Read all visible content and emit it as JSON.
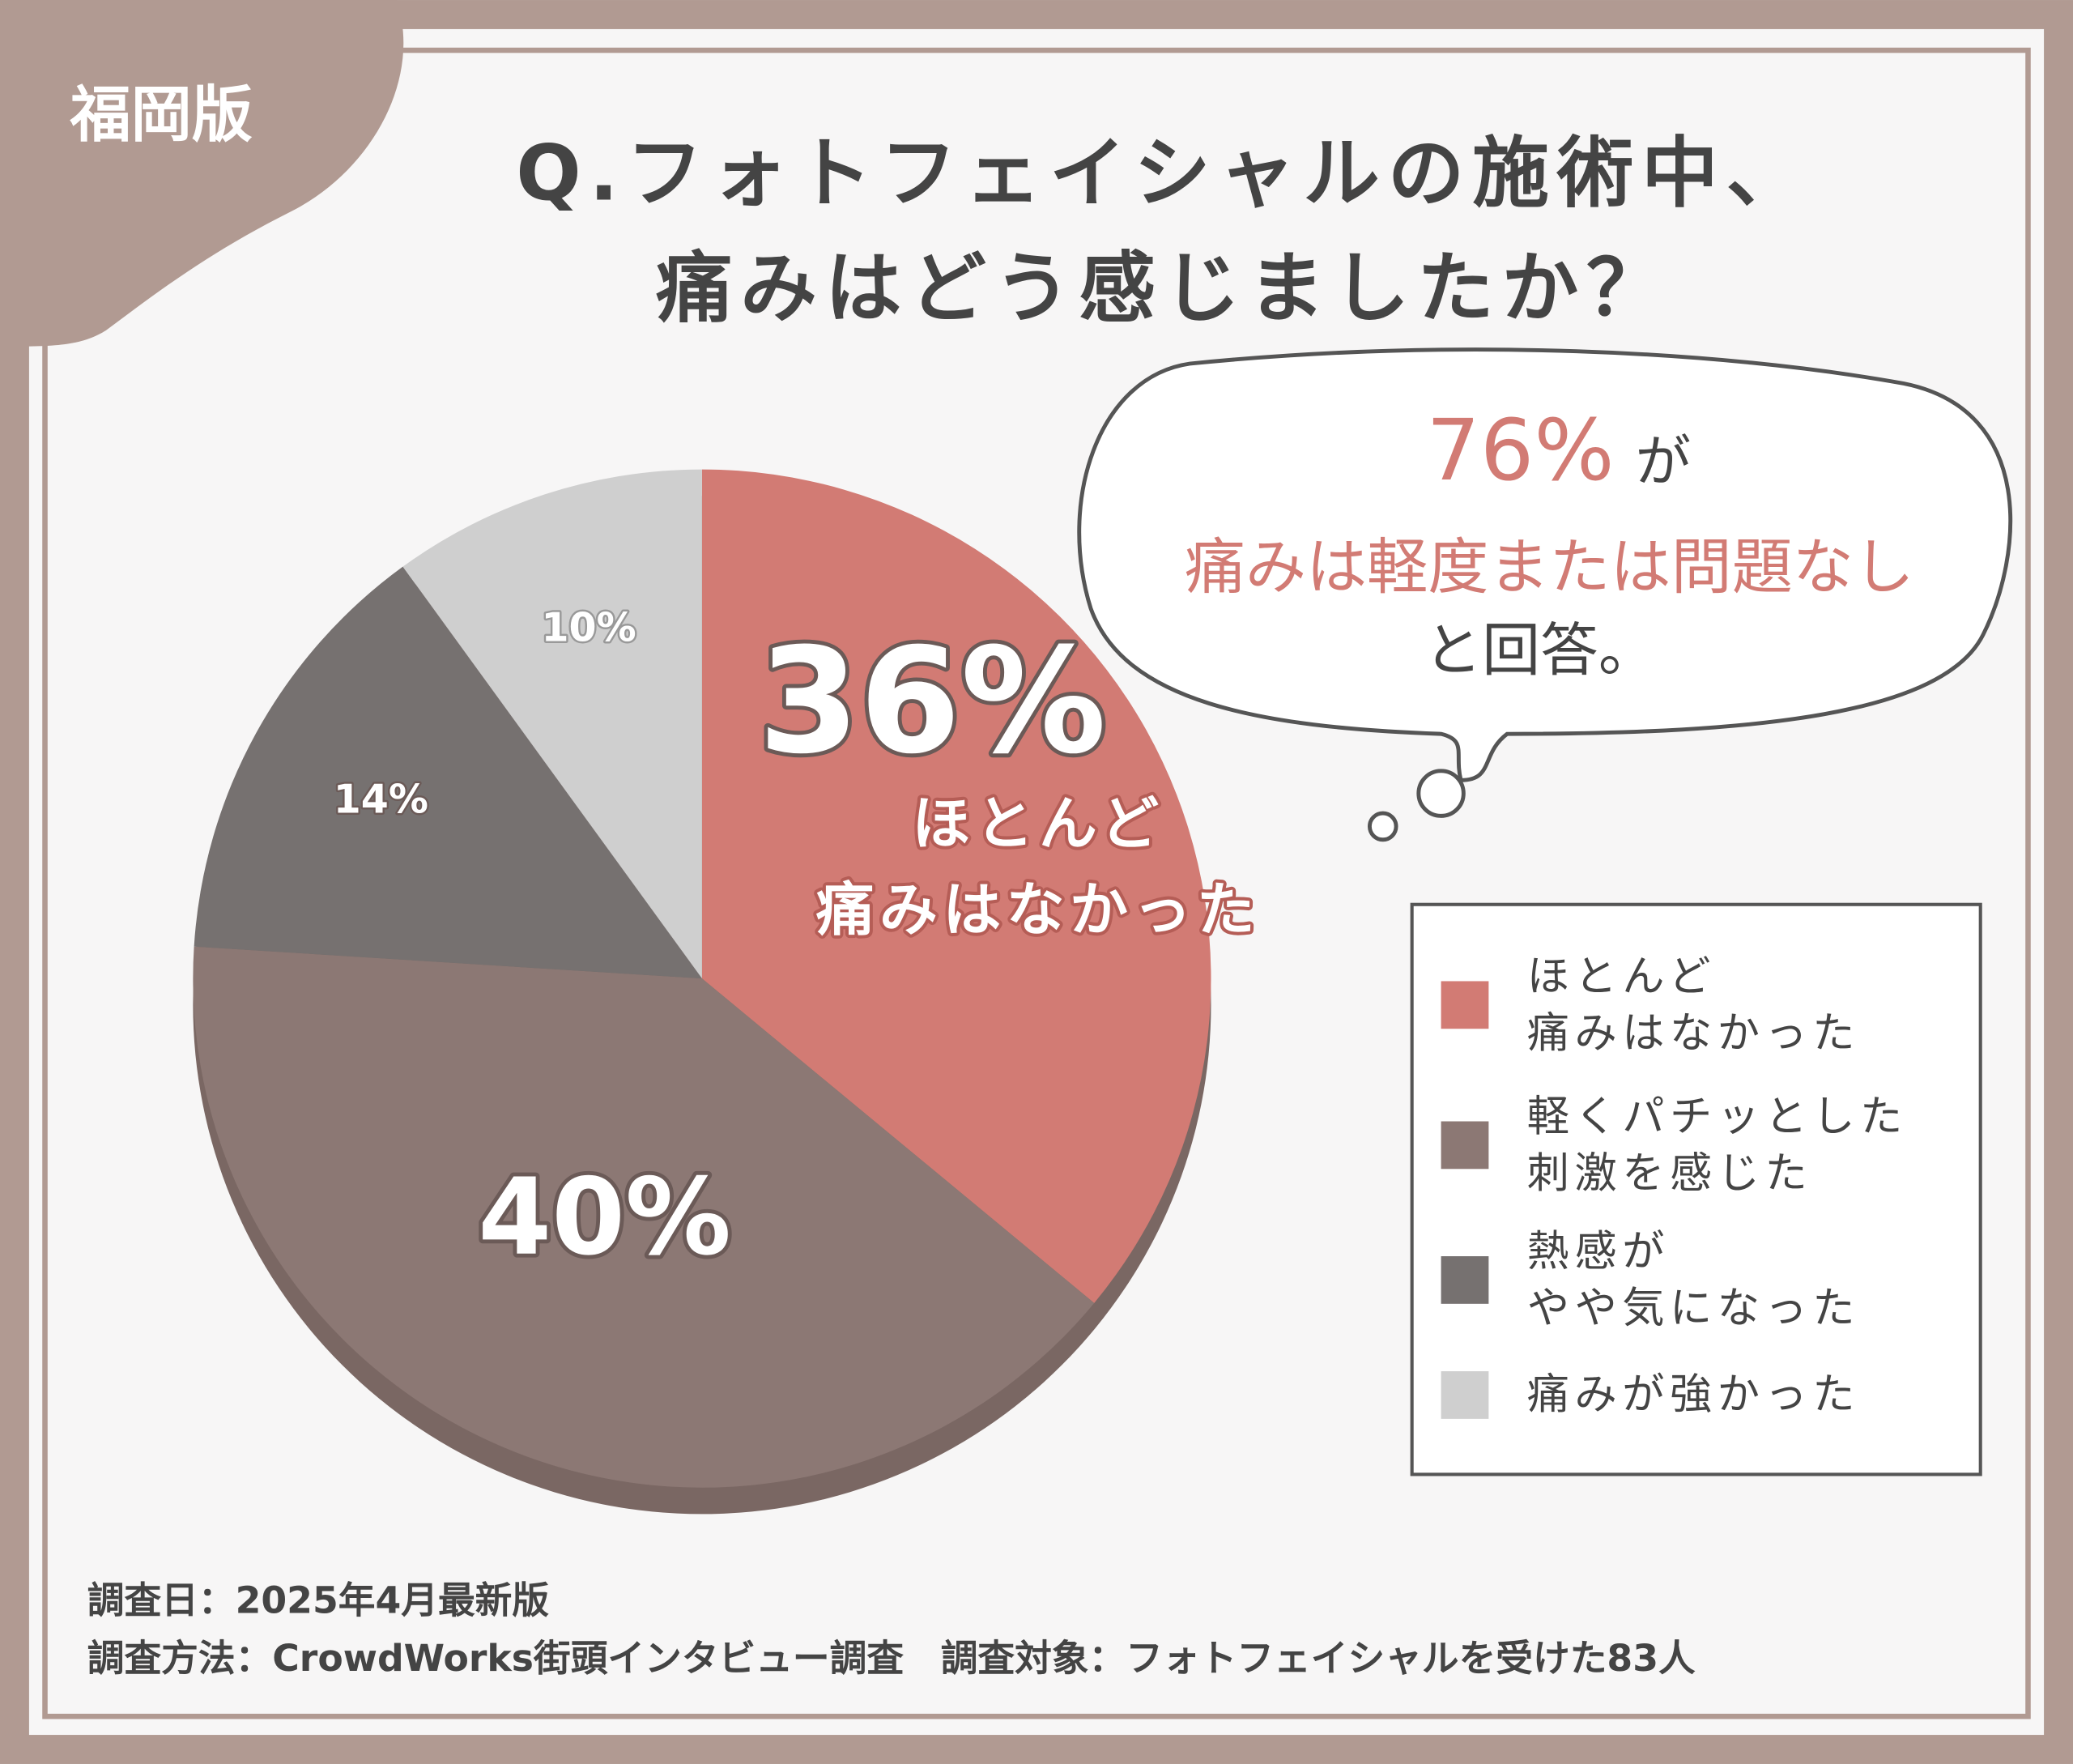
{
  "badge": "福岡版",
  "chart_data": {
    "type": "pie",
    "title": [
      "Q.フォトフェイシャルの施術中、",
      "痛みはどう感じましたか？"
    ],
    "categories": [
      "ほとんど\n痛みはなかった",
      "軽くパチッとした\n刺激を感じた",
      "熱感が\nやや気になった",
      "痛みが強かった"
    ],
    "values": [
      36,
      40,
      14,
      10
    ],
    "value_labels": [
      "36%",
      "40%",
      "14%",
      "10%"
    ],
    "colors": [
      "#d27b74",
      "#8c7874",
      "#767170",
      "#cfcfcf"
    ],
    "legend": "right"
  },
  "callout": {
    "percent": "76%",
    "particle": "が",
    "highlight": "痛みは軽度または問題なし",
    "ending": "と回答。"
  },
  "footer": [
    "調査日：2025年4月最新版",
    "調査方法：CrowdWorks街頭インタビュー調査　調査対象：フォトフェイシャルを受けた83人"
  ]
}
